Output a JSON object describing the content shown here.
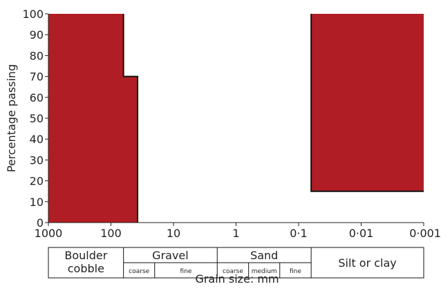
{
  "chart_data": {
    "type": "area",
    "title": "",
    "xlabel": "Grain size: mm",
    "ylabel": "Percentage passing",
    "x_scale": "log",
    "x_reversed": true,
    "xlim": [
      1000,
      0.001
    ],
    "ylim": [
      0,
      100
    ],
    "x_ticks": [
      {
        "value": 1000,
        "label": "1000"
      },
      {
        "value": 100,
        "label": "100"
      },
      {
        "value": 10,
        "label": "10"
      },
      {
        "value": 1,
        "label": "1"
      },
      {
        "value": 0.1,
        "label": "0·1"
      },
      {
        "value": 0.01,
        "label": "0·01"
      },
      {
        "value": 0.001,
        "label": "0·001"
      }
    ],
    "y_ticks": [
      0,
      10,
      20,
      30,
      40,
      50,
      60,
      70,
      80,
      90,
      100
    ],
    "fill_color": "#b11d24",
    "series": [
      {
        "x": [
          1000,
          63,
          63,
          37.5,
          37.5
        ],
        "y": [
          100,
          100,
          70,
          70,
          0
        ]
      },
      {
        "x": [
          0.063,
          0.063,
          0.001
        ],
        "y": [
          100,
          15,
          15
        ]
      }
    ]
  },
  "classification": {
    "groups": [
      {
        "label": "Boulder\ncobble",
        "from": 1000,
        "to": 63,
        "subdivisions": []
      },
      {
        "label": "Gravel",
        "from": 63,
        "to": 2,
        "subdivisions": [
          {
            "label": "coarse",
            "from": 63,
            "to": 20
          },
          {
            "label": "fine",
            "from": 20,
            "to": 2
          }
        ]
      },
      {
        "label": "Sand",
        "from": 2,
        "to": 0.063,
        "subdivisions": [
          {
            "label": "coarse",
            "from": 2,
            "to": 0.63
          },
          {
            "label": "medium",
            "from": 0.63,
            "to": 0.2
          },
          {
            "label": "fine",
            "from": 0.2,
            "to": 0.063
          }
        ]
      },
      {
        "label": "Silt or clay",
        "from": 0.063,
        "to": 0.001,
        "subdivisions": []
      }
    ]
  }
}
